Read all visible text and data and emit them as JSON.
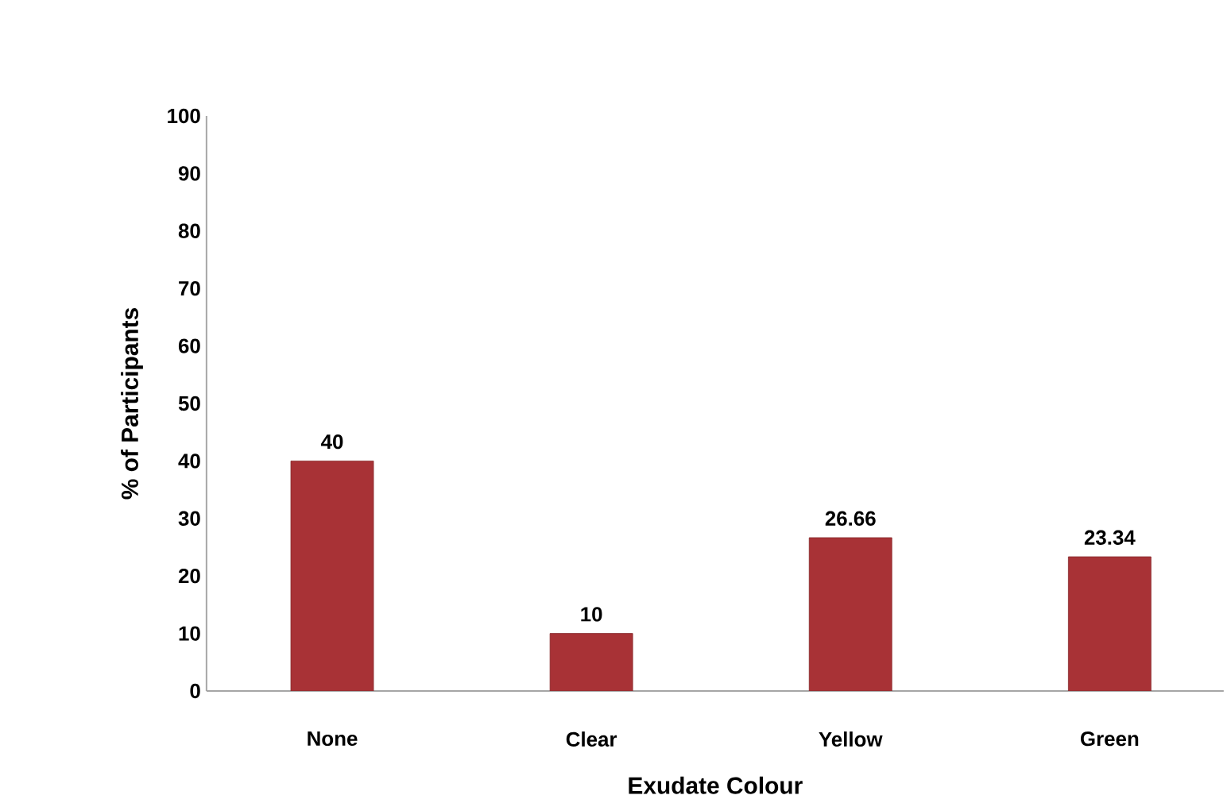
{
  "chart_data": {
    "type": "bar",
    "xlabel": "Exudate Colour",
    "ylabel": "% of Participants",
    "categories": [
      "None",
      "Clear",
      "Yellow",
      "Green"
    ],
    "values": [
      40,
      10,
      26.66,
      23.34
    ],
    "color": "#a83236",
    "ylim": [
      0,
      100
    ],
    "yticks": [
      0,
      10,
      20,
      30,
      40,
      50,
      60,
      70,
      80,
      90,
      100
    ],
    "data_labels": true,
    "grid": false
  }
}
